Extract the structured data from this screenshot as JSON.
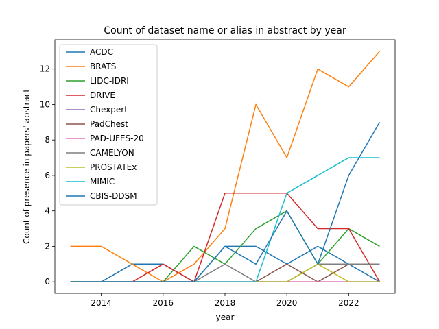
{
  "chart_data": {
    "type": "line",
    "title": "Count of dataset name or alias in abstract by year",
    "xlabel": "year",
    "ylabel": "Count of presence in papers' abstract",
    "x": [
      2013,
      2014,
      2015,
      2016,
      2017,
      2018,
      2019,
      2020,
      2021,
      2022,
      2023
    ],
    "xlim": [
      2012.5,
      2023.5
    ],
    "ylim": [
      -0.65,
      13.65
    ],
    "xticks": [
      2014,
      2016,
      2018,
      2020,
      2022
    ],
    "yticks": [
      0,
      2,
      4,
      6,
      8,
      10,
      12
    ],
    "grid": false,
    "legend_position": "upper-left",
    "series": [
      {
        "name": "ACDC",
        "color": "#1f77b4",
        "values": [
          0,
          0,
          1,
          1,
          0,
          2,
          2,
          1,
          2,
          1,
          0
        ]
      },
      {
        "name": "BRATS",
        "color": "#ff7f0e",
        "values": [
          2,
          2,
          1,
          0,
          1,
          3,
          10,
          7,
          12,
          11,
          13
        ]
      },
      {
        "name": "LIDC-IDRI",
        "color": "#2ca02c",
        "values": [
          0,
          0,
          0,
          0,
          2,
          1,
          3,
          4,
          1,
          3,
          2
        ]
      },
      {
        "name": "DRIVE",
        "color": "#d62728",
        "values": [
          0,
          0,
          0,
          1,
          0,
          5,
          5,
          5,
          3,
          3,
          0
        ]
      },
      {
        "name": "Chexpert",
        "color": "#9467bd",
        "values": [
          0,
          0,
          0,
          0,
          0,
          0,
          0,
          0,
          0,
          0,
          0
        ]
      },
      {
        "name": "PadChest",
        "color": "#8c564b",
        "values": [
          0,
          0,
          0,
          0,
          0,
          0,
          0,
          1,
          0,
          1,
          1
        ]
      },
      {
        "name": "PAD-UFES-20",
        "color": "#e377c2",
        "values": [
          0,
          0,
          0,
          0,
          0,
          0,
          0,
          0,
          0,
          0,
          0
        ]
      },
      {
        "name": "CAMELYON",
        "color": "#7f7f7f",
        "values": [
          0,
          0,
          0,
          0,
          0,
          1,
          0,
          0,
          1,
          1,
          1
        ]
      },
      {
        "name": "PROSTATEx",
        "color": "#bcbd22",
        "values": [
          0,
          0,
          0,
          0,
          0,
          0,
          0,
          0,
          1,
          0,
          0
        ]
      },
      {
        "name": "MIMIC",
        "color": "#17becf",
        "values": [
          0,
          0,
          0,
          0,
          0,
          0,
          0,
          5,
          6,
          7,
          7
        ]
      },
      {
        "name": "CBIS-DDSM",
        "color": "#1f77b4",
        "values": [
          0,
          0,
          0,
          0,
          0,
          2,
          1,
          4,
          1,
          6,
          9
        ]
      }
    ]
  }
}
